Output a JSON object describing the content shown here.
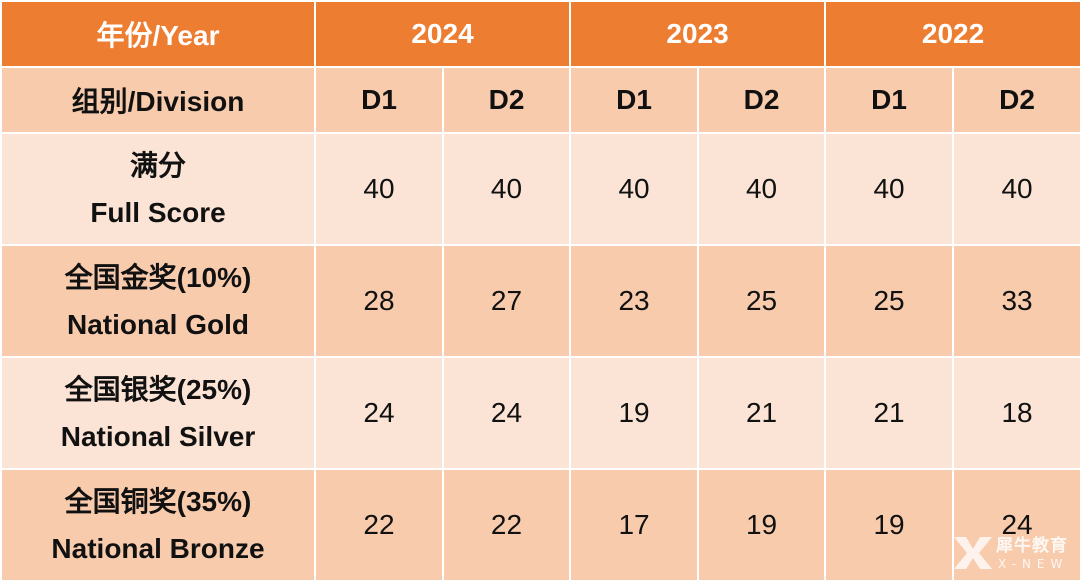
{
  "header": {
    "year_label": "年份/Year",
    "years": [
      "2024",
      "2023",
      "2022"
    ]
  },
  "division_row": {
    "label": "组别/Division",
    "divisions": [
      "D1",
      "D2",
      "D1",
      "D2",
      "D1",
      "D2"
    ]
  },
  "rows": [
    {
      "label_cn": "满分",
      "label_en": "Full Score",
      "values": [
        "40",
        "40",
        "40",
        "40",
        "40",
        "40"
      ]
    },
    {
      "label_cn": "全国金奖(10%)",
      "label_en": "National Gold",
      "values": [
        "28",
        "27",
        "23",
        "25",
        "25",
        "33"
      ]
    },
    {
      "label_cn": "全国银奖(25%)",
      "label_en": "National Silver",
      "values": [
        "24",
        "24",
        "19",
        "21",
        "21",
        "18"
      ]
    },
    {
      "label_cn": "全国铜奖(35%)",
      "label_en": "National Bronze",
      "values": [
        "22",
        "22",
        "17",
        "19",
        "19",
        "24"
      ]
    }
  ],
  "watermark": {
    "cn": "犀牛教育",
    "en": "X-NEW"
  },
  "colors": {
    "header": "#ed7d31",
    "dark_row": "#f8cbad",
    "light_row": "#fbe4d5"
  }
}
